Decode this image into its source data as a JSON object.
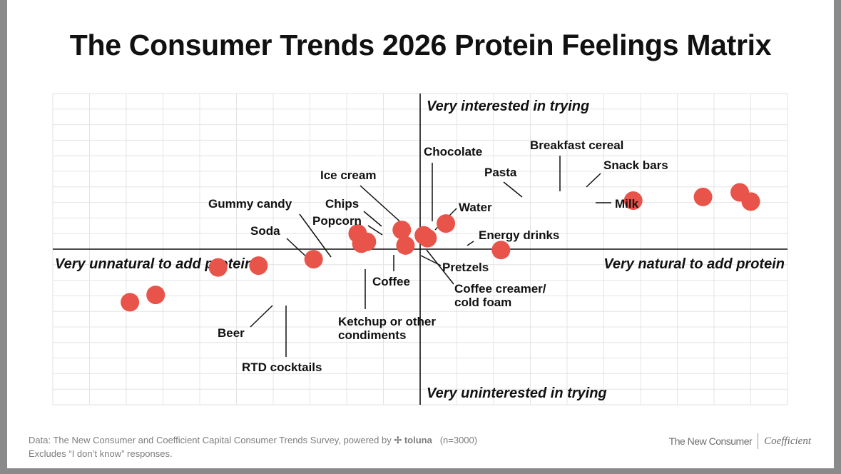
{
  "title": "The Consumer Trends 2026 Protein Feelings Matrix",
  "chart_data": {
    "type": "scatter",
    "title": "The Consumer Trends 2026 Protein Feelings Matrix",
    "xlim": [
      -10,
      10
    ],
    "ylim": [
      -8.5,
      8.5
    ],
    "grid": true,
    "axis_labels": {
      "top": "Very interested in trying",
      "bottom": "Very uninterested in trying",
      "left": "Very unnatural to add protein",
      "right": "Very natural to add protein"
    },
    "marker_color": "#e8534a",
    "points": [
      {
        "label": "Beer",
        "x": -7.9,
        "y": -2.9
      },
      {
        "label": "RTD cocktails",
        "x": -7.2,
        "y": -2.5
      },
      {
        "label": "Soda",
        "x": -5.5,
        "y": -1.0
      },
      {
        "label": "Gummy candy",
        "x": -4.4,
        "y": -0.9
      },
      {
        "label": "Ketchup or other condiments",
        "x": -2.9,
        "y": -0.55
      },
      {
        "label": "Popcorn",
        "x": -1.6,
        "y": 0.3
      },
      {
        "label": "Chips",
        "x": -1.7,
        "y": 0.85
      },
      {
        "label": "Coffee",
        "x": -1.45,
        "y": 0.4
      },
      {
        "label": "Ice cream",
        "x": -0.5,
        "y": 1.05
      },
      {
        "label": "Pretzels",
        "x": -0.4,
        "y": 0.2
      },
      {
        "label": "Coffee creamer/ cold foam",
        "x": 0.2,
        "y": 0.6
      },
      {
        "label": "Chocolate",
        "x": 0.1,
        "y": 0.75
      },
      {
        "label": "Water",
        "x": 0.7,
        "y": 1.4
      },
      {
        "label": "Energy drinks",
        "x": 2.2,
        "y": -0.05
      },
      {
        "label": "Pasta",
        "x": 5.8,
        "y": 2.65
      },
      {
        "label": "Breakfast cereal",
        "x": 7.7,
        "y": 2.85
      },
      {
        "label": "Snack bars",
        "x": 8.7,
        "y": 3.1
      },
      {
        "label": "Milk",
        "x": 9.0,
        "y": 2.6
      }
    ]
  },
  "footer": {
    "source_prefix": "Data: The New Consumer and Coefficient Capital Consumer Trends Survey, powered by",
    "toluna_logo": "toluna",
    "sample": "(n=3000)",
    "note": "Excludes “I don’t know” responses."
  },
  "brands": {
    "left": "The New Consumer",
    "right": "Coefficient"
  }
}
